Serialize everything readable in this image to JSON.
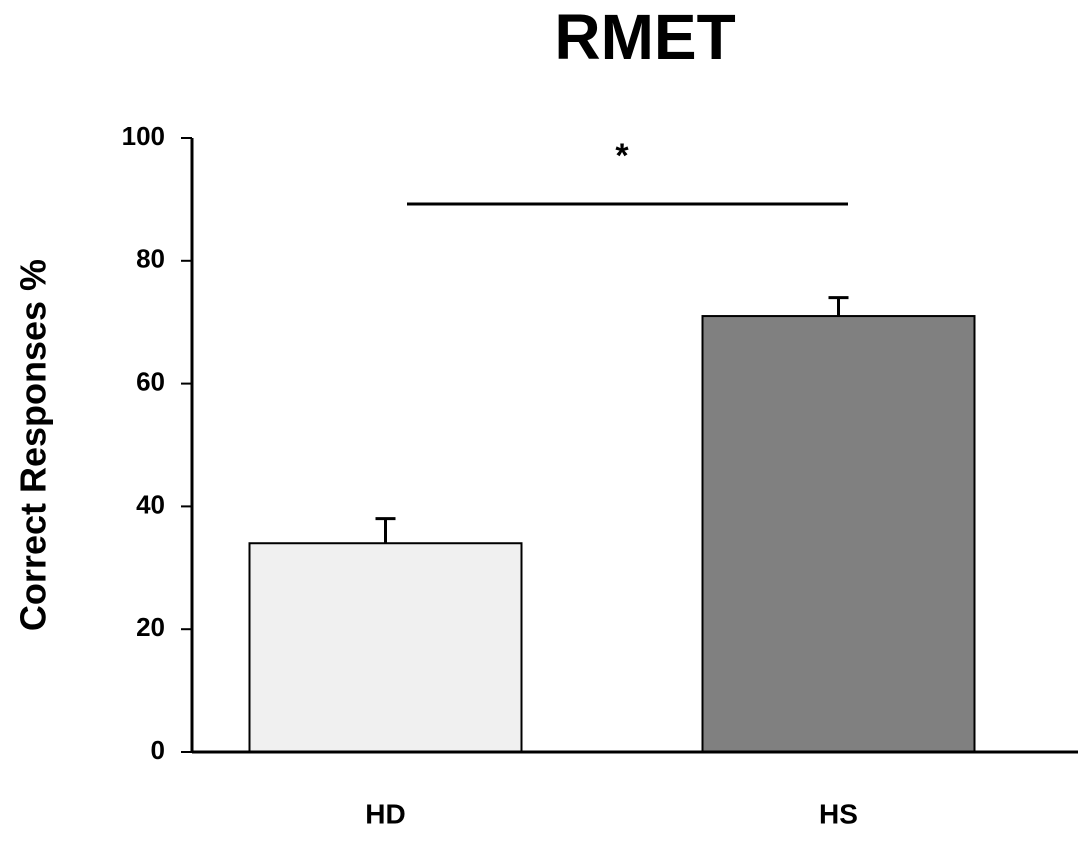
{
  "chart_data": {
    "type": "bar",
    "title": "RMET",
    "ylabel": "Correct Responses %",
    "categories": [
      "HD",
      "HS"
    ],
    "values": [
      34,
      71
    ],
    "errors": [
      4,
      3
    ],
    "colors": [
      "#f0f0f0",
      "#808080"
    ],
    "ylim": [
      0,
      100
    ],
    "yticks": [
      0,
      20,
      40,
      60,
      80,
      100
    ],
    "annotation": "*"
  }
}
